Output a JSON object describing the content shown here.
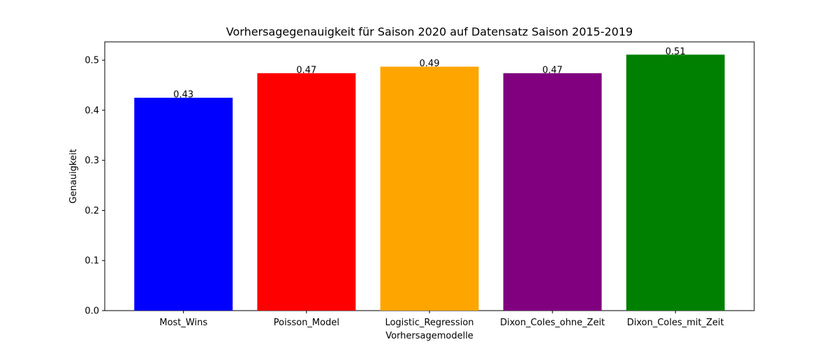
{
  "chart_data": {
    "type": "bar",
    "title": "Vorhersagegenauigkeit für Saison 2020 auf Datensatz Saison 2015-2019",
    "xlabel": "Vorhersagemodelle",
    "ylabel": "Genauigkeit",
    "categories": [
      "Most_Wins",
      "Poisson_Model",
      "Logistic_Regression",
      "Dixon_Coles_ohne_Zeit",
      "Dixon_Coles_mit_Zeit"
    ],
    "values": [
      0.425,
      0.474,
      0.487,
      0.474,
      0.511
    ],
    "data_labels": [
      "0.43",
      "0.47",
      "0.49",
      "0.47",
      "0.51"
    ],
    "colors": [
      "#0000ff",
      "#ff0000",
      "#ffa500",
      "#800080",
      "#008000"
    ],
    "ylim": [
      0,
      0.5365
    ],
    "yticks": [
      0.0,
      0.1,
      0.2,
      0.3,
      0.4,
      0.5
    ],
    "ytick_labels": [
      "0.0",
      "0.1",
      "0.2",
      "0.3",
      "0.4",
      "0.5"
    ],
    "grid": false,
    "legend": "none"
  }
}
